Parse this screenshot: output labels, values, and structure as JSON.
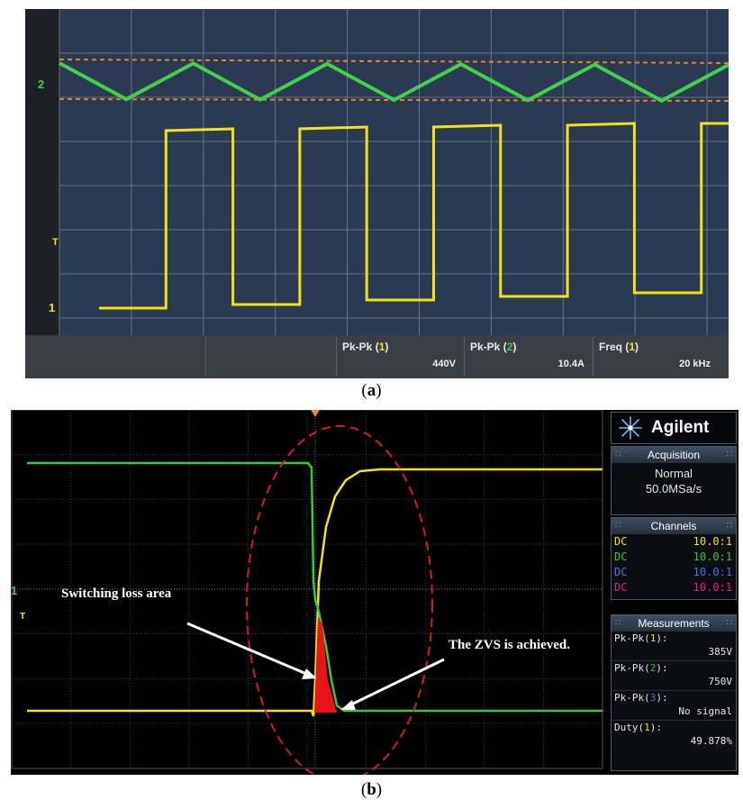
{
  "panel_a": {
    "caption": "(a)",
    "caption_letter": "a",
    "channel_markers": {
      "ch1": "1",
      "ch2": "2",
      "trigger": "T"
    },
    "measurements": [
      {
        "name": "Pk-Pk",
        "channel": "1",
        "value": "440V"
      },
      {
        "name": "Pk-Pk",
        "channel": "2",
        "value": "10.4A"
      },
      {
        "name": "Freq",
        "channel": "1",
        "value": "20 kHz"
      }
    ]
  },
  "panel_b": {
    "caption": "(b)",
    "caption_letter": "b",
    "channel_markers": {
      "ch1": "1",
      "trigger": "T"
    },
    "annotations": {
      "switching_loss": "Switching loss area",
      "zvs": "The ZVS is achieved."
    },
    "brand": "Agilent",
    "acquisition": {
      "header": "Acquisition",
      "mode": "Normal",
      "rate": "50.0MSa/s"
    },
    "channels": {
      "header": "Channels",
      "rows": [
        {
          "coupling": "DC",
          "probe": "10.0:1",
          "color": "#f3e21a"
        },
        {
          "coupling": "DC",
          "probe": "10.0:1",
          "color": "#38c83a"
        },
        {
          "coupling": "DC",
          "probe": "10.0:1",
          "color": "#5272e0"
        },
        {
          "coupling": "DC",
          "probe": "10.0:1",
          "color": "#e0247a"
        }
      ]
    },
    "measurements": {
      "header": "Measurements",
      "rows": [
        {
          "name": "Pk-Pk",
          "channel": "1",
          "value": "385V"
        },
        {
          "name": "Pk-Pk",
          "channel": "2",
          "value": "750V"
        },
        {
          "name": "Pk-Pk",
          "channel": "3",
          "value": "No signal"
        },
        {
          "name": "Duty",
          "channel": "1",
          "value": "49.878%"
        }
      ]
    }
  },
  "chart_data": [
    {
      "type": "line",
      "title": "",
      "series": [
        {
          "name": "",
          "color": "#42d04a",
          "shape": "triangle",
          "x": [
            0,
            1,
            2,
            3,
            4,
            5,
            6,
            7,
            8,
            9,
            10
          ],
          "y": [
            1,
            0,
            1,
            0,
            1,
            0,
            1,
            0,
            1,
            0,
            1
          ]
        },
        {
          "name": "",
          "color": "#f3e21a",
          "shape": "square",
          "x": [
            0,
            1,
            1,
            2,
            2,
            3,
            3,
            4,
            4,
            5,
            5,
            6,
            6,
            7,
            7,
            8,
            8,
            9,
            9,
            10
          ],
          "y": [
            0,
            0,
            1,
            1,
            0,
            0,
            1,
            1,
            0,
            0,
            1,
            1,
            0,
            0,
            1,
            1,
            0,
            0,
            1,
            1
          ]
        }
      ],
      "grid": true,
      "legend": "none"
    },
    {
      "type": "line",
      "title": "",
      "series": [
        {
          "name": "",
          "color": "#38c83a",
          "shape": "falling edge"
        },
        {
          "name": "",
          "color": "#f3e21a",
          "shape": "rising edge"
        }
      ],
      "highlight_color": "#e8141a",
      "ellipse_color": "#d11f1f",
      "grid": true,
      "legend": "none"
    }
  ]
}
